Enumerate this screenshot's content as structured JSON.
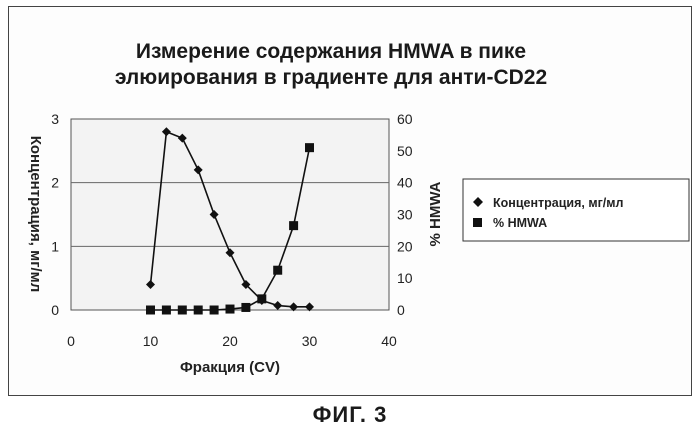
{
  "figure_caption": "ФИГ. 3",
  "chart_data": {
    "type": "line",
    "title_lines": [
      "Измерение содержания HMWA в пике",
      "элюирования в градиенте для анти-CD22"
    ],
    "xlabel": "Фракция (CV)",
    "ylabel_left": "Концентрация, мг/мл",
    "ylabel_right": "% HMWA",
    "xlim": [
      0,
      40
    ],
    "ylim_left": [
      0,
      3
    ],
    "ylim_right": [
      0,
      60
    ],
    "x_ticks": [
      "0",
      "10",
      "20",
      "30",
      "40"
    ],
    "y_left_ticks": [
      "0",
      "1",
      "2",
      "3"
    ],
    "y_right_ticks": [
      "0",
      "10",
      "20",
      "30",
      "40",
      "50",
      "60"
    ],
    "grid": "horizontal",
    "legend_position": "right",
    "series": [
      {
        "name": "Концентрация, мг/мл",
        "axis": "left",
        "marker": "diamond",
        "x": [
          10,
          12,
          14,
          16,
          18,
          20,
          22,
          24,
          26,
          28,
          30
        ],
        "y": [
          0.4,
          2.8,
          2.7,
          2.2,
          1.5,
          0.9,
          0.4,
          0.15,
          0.07,
          0.05,
          0.05
        ]
      },
      {
        "name": "% HMWA",
        "axis": "right",
        "marker": "square",
        "x": [
          10,
          12,
          14,
          16,
          18,
          20,
          22,
          24,
          26,
          28,
          30
        ],
        "y": [
          0,
          0,
          0,
          0,
          0,
          0.3,
          0.8,
          3.5,
          12.5,
          26.5,
          51
        ]
      }
    ]
  }
}
